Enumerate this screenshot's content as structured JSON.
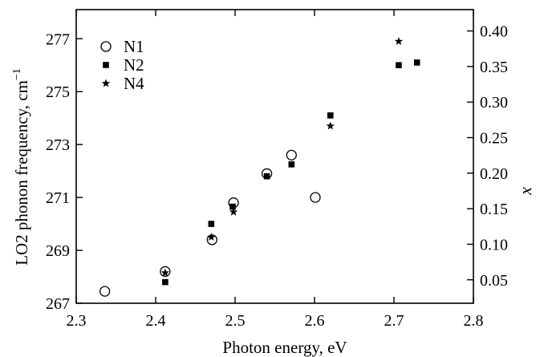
{
  "chart_data": {
    "type": "scatter",
    "title": "",
    "xlabel": "Photon energy, eV",
    "ylabel_left": "LO2 phonon frequency, cm",
    "ylabel_left_superscript": "−1",
    "ylabel_right": "x",
    "xlim": [
      2.3,
      2.8
    ],
    "ylim_left": [
      267,
      278.1
    ],
    "ylim_right": [
      0.017,
      0.43
    ],
    "x_ticks": [
      2.3,
      2.4,
      2.5,
      2.6,
      2.7,
      2.8
    ],
    "x_tick_labels": [
      "2.3",
      "2.4",
      "2.5",
      "2.6",
      "2.7",
      "2.8"
    ],
    "y_left_ticks": [
      267,
      269,
      271,
      273,
      275,
      277
    ],
    "y_left_tick_labels": [
      "267",
      "269",
      "271",
      "273",
      "275",
      "277"
    ],
    "y_right_ticks": [
      0.05,
      0.1,
      0.15,
      0.2,
      0.25,
      0.3,
      0.35,
      0.4
    ],
    "y_right_tick_labels": [
      "0.05",
      "0.10",
      "0.15",
      "0.20",
      "0.25",
      "0.30",
      "0.35",
      "0.40"
    ],
    "grid": false,
    "legend_position": "top-left",
    "series": [
      {
        "name": "N1",
        "marker": "open-circle",
        "axis": "left",
        "points": [
          [
            2.336,
            267.45
          ],
          [
            2.412,
            268.2
          ],
          [
            2.471,
            269.4
          ],
          [
            2.498,
            270.8
          ],
          [
            2.54,
            271.9
          ],
          [
            2.571,
            272.6
          ],
          [
            2.601,
            271.0
          ]
        ]
      },
      {
        "name": "N2",
        "marker": "filled-square",
        "axis": "left",
        "points": [
          [
            2.412,
            267.8
          ],
          [
            2.47,
            270.0
          ],
          [
            2.497,
            270.65
          ],
          [
            2.54,
            271.8
          ],
          [
            2.571,
            272.25
          ],
          [
            2.62,
            274.1
          ],
          [
            2.706,
            276.0
          ],
          [
            2.729,
            276.1
          ]
        ]
      },
      {
        "name": "N4",
        "marker": "star",
        "axis": "left",
        "points": [
          [
            2.412,
            268.15
          ],
          [
            2.47,
            269.5
          ],
          [
            2.498,
            270.45
          ],
          [
            2.62,
            273.7
          ],
          [
            2.706,
            276.9
          ]
        ]
      }
    ]
  }
}
